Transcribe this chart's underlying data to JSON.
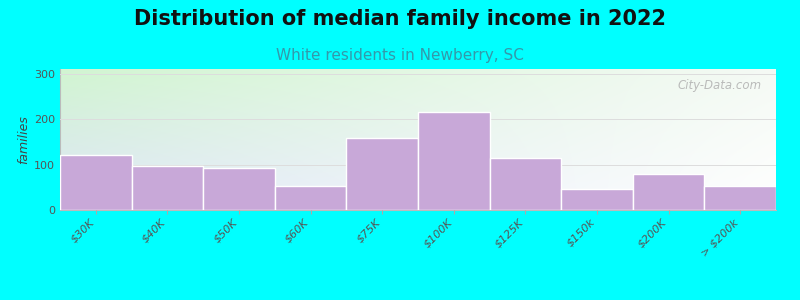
{
  "title": "Distribution of median family income in 2022",
  "subtitle": "White residents in Newberry, SC",
  "ylabel": "families",
  "categories": [
    "$30K",
    "$40K",
    "$50K",
    "$60K",
    "$75K",
    "$100K",
    "$125K",
    "$150k",
    "$200K",
    "> $200k"
  ],
  "values": [
    120,
    97,
    93,
    52,
    158,
    215,
    115,
    46,
    80,
    52
  ],
  "bar_color": "#c8a8d8",
  "bar_edgecolor": "#ffffff",
  "background_outer": "#00FFFF",
  "grad_topleft": [
    0.82,
    0.96,
    0.82,
    1.0
  ],
  "grad_topright": [
    0.96,
    0.98,
    0.96,
    1.0
  ],
  "grad_bottomleft": [
    0.88,
    0.9,
    0.98,
    1.0
  ],
  "grad_bottomright": [
    1.0,
    1.0,
    1.0,
    1.0
  ],
  "ylim": [
    0,
    310
  ],
  "yticks": [
    0,
    100,
    200,
    300
  ],
  "grid_color": "#dddddd",
  "title_fontsize": 15,
  "subtitle_fontsize": 11,
  "subtitle_color": "#3399aa",
  "ylabel_fontsize": 9,
  "tick_fontsize": 8,
  "watermark_text": "City-Data.com"
}
